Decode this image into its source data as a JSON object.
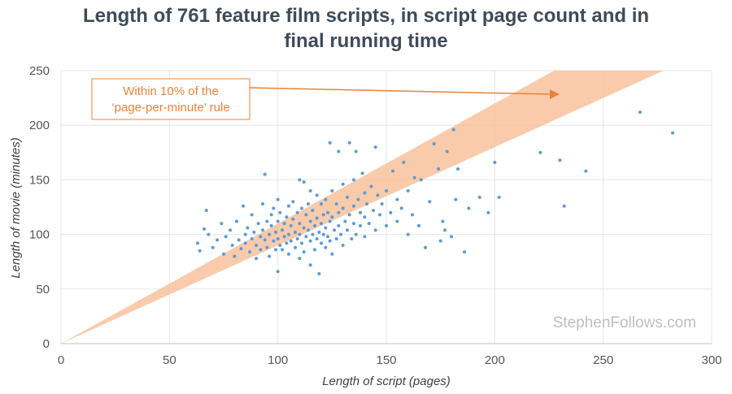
{
  "title_line1": "Length of 761 feature film scripts, in script page count and in",
  "title_line2": "final running time",
  "watermark": "StephenFollows.com",
  "annotation": {
    "line1": "Within 10% of the",
    "line2": "‘page-per-minute’ rule"
  },
  "colors": {
    "points": "#5b9bd5",
    "band": "#f8c29c",
    "annotation": "#e8833a",
    "grid": "#e6e6e6",
    "title": "#3f4b5b"
  },
  "chart_data": {
    "type": "scatter",
    "title": "Length of 761 feature film scripts, in script page count and in final running time",
    "xlabel": "Length of script (pages)",
    "ylabel": "Length of movie (minutes)",
    "xlim": [
      0,
      300
    ],
    "ylim": [
      0,
      250
    ],
    "xticks": [
      "0",
      "50",
      "100",
      "150",
      "200",
      "250",
      "300"
    ],
    "yticks": [
      "0",
      "50",
      "100",
      "150",
      "200",
      "250"
    ],
    "grid": true,
    "band": {
      "label": "Within 10% of the ‘page-per-minute’ rule",
      "lower_ratio": 0.9,
      "upper_ratio": 1.1
    },
    "series": [
      {
        "points": [
          [
            63,
            92
          ],
          [
            64,
            85
          ],
          [
            66,
            105
          ],
          [
            67,
            122
          ],
          [
            68,
            100
          ],
          [
            70,
            88
          ],
          [
            72,
            95
          ],
          [
            74,
            110
          ],
          [
            75,
            82
          ],
          [
            76,
            98
          ],
          [
            78,
            104
          ],
          [
            79,
            90
          ],
          [
            80,
            80
          ],
          [
            81,
            112
          ],
          [
            82,
            95
          ],
          [
            83,
            87
          ],
          [
            84,
            126
          ],
          [
            85,
            100
          ],
          [
            85,
            92
          ],
          [
            86,
            106
          ],
          [
            87,
            84
          ],
          [
            88,
            118
          ],
          [
            88,
            96
          ],
          [
            89,
            102
          ],
          [
            90,
            90
          ],
          [
            90,
            78
          ],
          [
            91,
            110
          ],
          [
            92,
            98
          ],
          [
            92,
            86
          ],
          [
            93,
            128
          ],
          [
            93,
            104
          ],
          [
            94,
            95
          ],
          [
            94,
            155
          ],
          [
            95,
            112
          ],
          [
            95,
            88
          ],
          [
            96,
            100
          ],
          [
            96,
            80
          ],
          [
            97,
            118
          ],
          [
            97,
            108
          ],
          [
            98,
            94
          ],
          [
            98,
            124
          ],
          [
            99,
            86
          ],
          [
            99,
            102
          ],
          [
            100,
            132
          ],
          [
            100,
            112
          ],
          [
            100,
            96
          ],
          [
            100,
            66
          ],
          [
            101,
            90
          ],
          [
            101,
            120
          ],
          [
            102,
            104
          ],
          [
            102,
            86
          ],
          [
            103,
            110
          ],
          [
            103,
            98
          ],
          [
            104,
            116
          ],
          [
            104,
            92
          ],
          [
            105,
            126
          ],
          [
            105,
            100
          ],
          [
            105,
            82
          ],
          [
            106,
            108
          ],
          [
            106,
            94
          ],
          [
            107,
            130
          ],
          [
            107,
            114
          ],
          [
            108,
            102
          ],
          [
            108,
            88
          ],
          [
            109,
            120
          ],
          [
            109,
            96
          ],
          [
            110,
            150
          ],
          [
            110,
            110
          ],
          [
            110,
            100
          ],
          [
            110,
            78
          ],
          [
            111,
            124
          ],
          [
            111,
            92
          ],
          [
            112,
            148
          ],
          [
            112,
            106
          ],
          [
            112,
            84
          ],
          [
            113,
            118
          ],
          [
            113,
            98
          ],
          [
            114,
            128
          ],
          [
            114,
            104
          ],
          [
            115,
            140
          ],
          [
            115,
            112
          ],
          [
            115,
            94
          ],
          [
            115,
            72
          ],
          [
            116,
            122
          ],
          [
            116,
            100
          ],
          [
            117,
            108
          ],
          [
            117,
            86
          ],
          [
            118,
            136
          ],
          [
            118,
            115
          ],
          [
            118,
            96
          ],
          [
            119,
            102
          ],
          [
            119,
            64
          ],
          [
            120,
            128
          ],
          [
            120,
            110
          ],
          [
            120,
            92
          ],
          [
            121,
            118
          ],
          [
            121,
            100
          ],
          [
            122,
            132
          ],
          [
            122,
            106
          ],
          [
            122,
            88
          ],
          [
            123,
            120
          ],
          [
            123,
            98
          ],
          [
            124,
            184
          ],
          [
            124,
            112
          ],
          [
            124,
            94
          ],
          [
            125,
            140
          ],
          [
            125,
            116
          ],
          [
            125,
            82
          ],
          [
            126,
            104
          ],
          [
            127,
            128
          ],
          [
            127,
            96
          ],
          [
            128,
            176
          ],
          [
            128,
            120
          ],
          [
            128,
            108
          ],
          [
            129,
            100
          ],
          [
            130,
            146
          ],
          [
            130,
            124
          ],
          [
            130,
            90
          ],
          [
            131,
            112
          ],
          [
            132,
            134
          ],
          [
            132,
            104
          ],
          [
            133,
            184
          ],
          [
            133,
            118
          ],
          [
            134,
            96
          ],
          [
            135,
            150
          ],
          [
            135,
            126
          ],
          [
            135,
            110
          ],
          [
            136,
            176
          ],
          [
            136,
            100
          ],
          [
            137,
            132
          ],
          [
            138,
            120
          ],
          [
            138,
            108
          ],
          [
            139,
            156
          ],
          [
            140,
            138
          ],
          [
            140,
            116
          ],
          [
            140,
            98
          ],
          [
            141,
            128
          ],
          [
            142,
            110
          ],
          [
            143,
            144
          ],
          [
            144,
            122
          ],
          [
            145,
            180
          ],
          [
            145,
            104
          ],
          [
            146,
            136
          ],
          [
            147,
            118
          ],
          [
            148,
            128
          ],
          [
            150,
            140
          ],
          [
            150,
            108
          ],
          [
            152,
            120
          ],
          [
            153,
            158
          ],
          [
            155,
            132
          ],
          [
            155,
            112
          ],
          [
            157,
            124
          ],
          [
            158,
            166
          ],
          [
            160,
            100
          ],
          [
            160,
            140
          ],
          [
            162,
            118
          ],
          [
            163,
            152
          ],
          [
            165,
            108
          ],
          [
            166,
            150
          ],
          [
            168,
            88
          ],
          [
            170,
            130
          ],
          [
            172,
            183
          ],
          [
            174,
            160
          ],
          [
            175,
            94
          ],
          [
            176,
            112
          ],
          [
            177,
            104
          ],
          [
            178,
            176
          ],
          [
            180,
            98
          ],
          [
            181,
            196
          ],
          [
            182,
            132
          ],
          [
            183,
            160
          ],
          [
            186,
            84
          ],
          [
            188,
            124
          ],
          [
            193,
            134
          ],
          [
            197,
            120
          ],
          [
            200,
            166
          ],
          [
            202,
            134
          ],
          [
            221,
            175
          ],
          [
            230,
            168
          ],
          [
            232,
            126
          ],
          [
            242,
            158
          ],
          [
            267,
            212
          ],
          [
            282,
            193
          ]
        ]
      }
    ]
  }
}
